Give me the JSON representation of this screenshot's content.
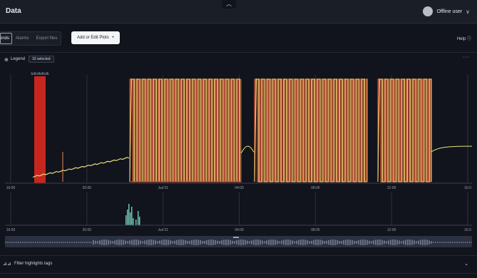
{
  "header": {
    "title": "Data",
    "collapse_icon": "chevron-up-icon",
    "user_name": "Offline user",
    "user_chevron": "chevron-down-icon"
  },
  "toolbar": {
    "tabs": [
      {
        "label": "Trends",
        "active": true
      },
      {
        "label": "Alarms",
        "active": false
      },
      {
        "label": "Export files",
        "active": false
      }
    ],
    "add_button": "Add or Edit Plots",
    "add_icon": "+",
    "help": "Help"
  },
  "legend": {
    "label": "Legend",
    "selected": "10 selected"
  },
  "main_chart": {
    "highlight_label": "bdbdbdbdb",
    "x_ticks": [
      "16:00",
      "20:00",
      "Jun'21",
      "04:00",
      "08:00",
      "12:00",
      "16:0"
    ],
    "colors": {
      "highlight": "#c7261f",
      "series_orange": "#e8864e",
      "series_yellow": "#e8e07a",
      "series_red": "#c94a2f"
    }
  },
  "overview_chart": {
    "x_ticks": [
      "16:00",
      "20:00",
      "Jun'21",
      "04:00",
      "08:00",
      "12:00",
      "16:0"
    ],
    "spike_color": "#6fc2b0"
  },
  "filter": {
    "label": "Filter highlights tags"
  }
}
